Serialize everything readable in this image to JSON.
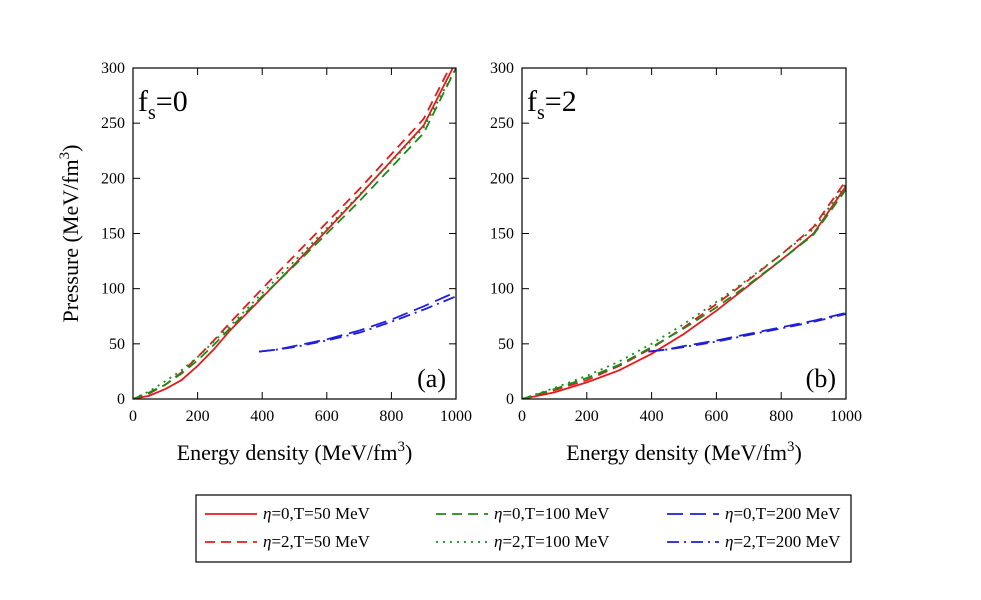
{
  "chart_data": [
    {
      "type": "line",
      "panel_label": "(a)",
      "corner_label": {
        "main": "f",
        "sub": "s",
        "suffix": "=0"
      },
      "xlabel": "Energy density (MeV/fm",
      "xlabel_sup": "3",
      "xlabel_tail": ")",
      "ylabel": "Pressure (MeV/fm",
      "ylabel_sup": "3",
      "ylabel_tail": ")",
      "xlim": [
        0,
        1000
      ],
      "ylim": [
        0,
        300
      ],
      "xticks": [
        "0",
        "200",
        "400",
        "600",
        "800",
        "1000"
      ],
      "yticks": [
        "0",
        "50",
        "100",
        "150",
        "200",
        "250",
        "300"
      ],
      "series": [
        {
          "name": "η=0,T=50 MeV",
          "color": "#e31a1c",
          "dash": "solid",
          "x": [
            0,
            50,
            100,
            150,
            200,
            250,
            300,
            400,
            500,
            600,
            700,
            800,
            900,
            990
          ],
          "y": [
            0,
            3,
            9,
            17,
            30,
            45,
            62,
            92,
            122,
            153,
            184,
            216,
            248,
            300
          ]
        },
        {
          "name": "η=2,T=50 MeV",
          "color": "#e31a1c",
          "dash": "dashed",
          "x": [
            0,
            50,
            100,
            150,
            200,
            250,
            300,
            400,
            500,
            600,
            700,
            800,
            900,
            980
          ],
          "y": [
            0,
            5,
            13,
            24,
            38,
            53,
            69,
            100,
            130,
            160,
            190,
            222,
            254,
            300
          ]
        },
        {
          "name": "η=0,T=100 MeV",
          "color": "#1a8a1a",
          "dash": "dashed",
          "x": [
            0,
            50,
            100,
            150,
            200,
            250,
            300,
            400,
            500,
            600,
            700,
            800,
            900,
            1000
          ],
          "y": [
            0,
            6,
            13,
            23,
            35,
            49,
            64,
            93,
            121,
            150,
            179,
            210,
            241,
            300
          ]
        },
        {
          "name": "η=2,T=100 MeV",
          "color": "#1a8a1a",
          "dash": "dotted",
          "x": [
            0,
            50,
            100,
            150,
            200,
            250,
            300,
            400,
            500,
            600,
            700,
            800,
            900,
            1000
          ],
          "y": [
            0,
            7,
            16,
            26,
            38,
            52,
            66,
            96,
            125,
            155,
            185,
            215,
            246,
            300
          ]
        },
        {
          "name": "η=0,T=200 MeV",
          "color": "#1f1fd8",
          "dash": "longdash",
          "x": [
            390,
            450,
            500,
            600,
            700,
            800,
            900,
            1000
          ],
          "y": [
            43,
            45,
            48,
            54,
            62,
            72,
            84,
            97
          ]
        },
        {
          "name": "η=2,T=200 MeV",
          "color": "#1f1fd8",
          "dash": "dashdot",
          "x": [
            390,
            450,
            500,
            600,
            700,
            800,
            900,
            1000
          ],
          "y": [
            43,
            45,
            47,
            53,
            60,
            70,
            81,
            93
          ]
        }
      ]
    },
    {
      "type": "line",
      "panel_label": "(b)",
      "corner_label": {
        "main": "f",
        "sub": "s",
        "suffix": "=2"
      },
      "xlabel": "Energy density (MeV/fm",
      "xlabel_sup": "3",
      "xlabel_tail": ")",
      "xlim": [
        0,
        1000
      ],
      "ylim": [
        0,
        300
      ],
      "xticks": [
        "0",
        "200",
        "400",
        "600",
        "800",
        "1000"
      ],
      "yticks": [
        "0",
        "50",
        "100",
        "150",
        "200",
        "250",
        "300"
      ],
      "series": [
        {
          "name": "η=0,T=50 MeV",
          "color": "#e31a1c",
          "dash": "solid",
          "x": [
            0,
            100,
            200,
            300,
            400,
            500,
            600,
            700,
            800,
            900,
            1000
          ],
          "y": [
            0,
            6,
            15,
            26,
            41,
            59,
            80,
            103,
            126,
            150,
            193
          ]
        },
        {
          "name": "η=2,T=50 MeV",
          "color": "#e31a1c",
          "dash": "dashed",
          "x": [
            0,
            100,
            200,
            300,
            400,
            500,
            600,
            700,
            800,
            900,
            1000
          ],
          "y": [
            0,
            8,
            17,
            30,
            46,
            65,
            86,
            108,
            131,
            156,
            198
          ]
        },
        {
          "name": "η=0,T=100 MeV",
          "color": "#1a8a1a",
          "dash": "dashed",
          "x": [
            0,
            100,
            200,
            300,
            400,
            500,
            600,
            700,
            800,
            900,
            1000
          ],
          "y": [
            0,
            9,
            19,
            31,
            47,
            64,
            83,
            104,
            126,
            149,
            190
          ]
        },
        {
          "name": "η=2,T=100 MeV",
          "color": "#1a8a1a",
          "dash": "dotted",
          "x": [
            0,
            100,
            200,
            300,
            400,
            500,
            600,
            700,
            800,
            900,
            1000
          ],
          "y": [
            0,
            10,
            21,
            34,
            50,
            68,
            88,
            109,
            131,
            154,
            195
          ]
        },
        {
          "name": "η=0,T=200 MeV",
          "color": "#1f1fd8",
          "dash": "longdash",
          "x": [
            390,
            450,
            500,
            600,
            700,
            800,
            900,
            1000
          ],
          "y": [
            43,
            45,
            48,
            53,
            59,
            65,
            71,
            78
          ]
        },
        {
          "name": "η=2,T=200 MeV",
          "color": "#1f1fd8",
          "dash": "dashdot",
          "x": [
            390,
            450,
            500,
            600,
            700,
            800,
            900,
            1000
          ],
          "y": [
            43,
            45,
            47,
            52,
            58,
            64,
            70,
            77
          ]
        }
      ]
    }
  ],
  "legend": [
    {
      "eta": "η",
      "text": "=0,T=50 MeV",
      "color": "#e31a1c",
      "dash": "solid"
    },
    {
      "eta": "η",
      "text": "=0,T=100 MeV",
      "color": "#1a8a1a",
      "dash": "dashed"
    },
    {
      "eta": "η",
      "text": "=0,T=200 MeV",
      "color": "#1f1fd8",
      "dash": "longdash"
    },
    {
      "eta": "η",
      "text": "=2,T=50 MeV",
      "color": "#e31a1c",
      "dash": "dashed"
    },
    {
      "eta": "η",
      "text": "=2,T=100 MeV",
      "color": "#1a8a1a",
      "dash": "dotted"
    },
    {
      "eta": "η",
      "text": "=2,T=200 MeV",
      "color": "#1f1fd8",
      "dash": "dashdot"
    }
  ]
}
